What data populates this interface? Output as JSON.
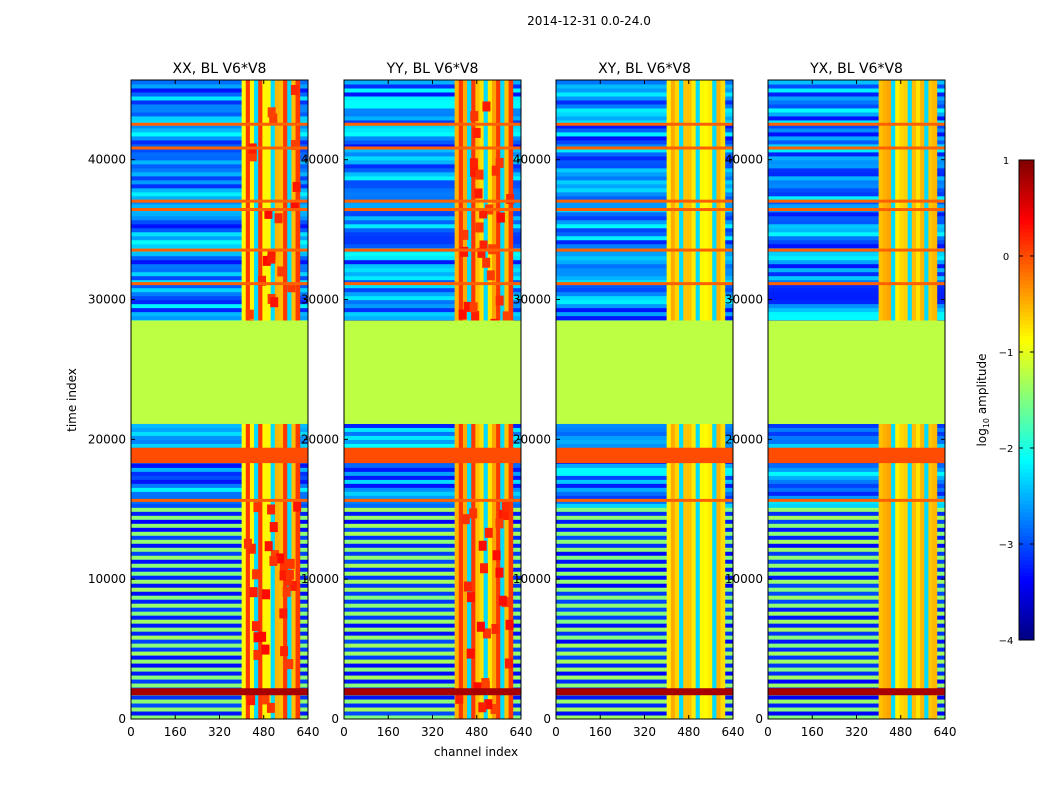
{
  "figure_title": "2014-12-31 0.0-24.0",
  "chart_data": {
    "type": "heatmap",
    "colormap": "jet",
    "xlabel": "channel index",
    "ylabel": "time index",
    "xlim": [
      0,
      640
    ],
    "ylim": [
      0,
      45700
    ],
    "xticks": [
      0,
      160,
      320,
      480,
      640
    ],
    "yticks": [
      0,
      10000,
      20000,
      30000,
      40000
    ],
    "xtick_labels": [
      "0",
      "160",
      "320",
      "480",
      "640"
    ],
    "ytick_labels": [
      "0",
      "10000",
      "20000",
      "30000",
      "40000"
    ],
    "colorbar": {
      "label_prefix": "log",
      "label_sub": "10",
      "label_suffix": " amplitude",
      "range": [
        -4,
        1
      ],
      "ticks": [
        1,
        0,
        -1,
        -2,
        -3,
        -4
      ],
      "tick_labels": [
        "1",
        "0",
        "−1",
        "−2",
        "−3",
        "−4"
      ]
    },
    "panels": [
      {
        "title": "XX, BL V6*V8"
      },
      {
        "title": "YY, BL V6*V8"
      },
      {
        "title": "XY, BL V6*V8"
      },
      {
        "title": "YX, BL V6*V8"
      }
    ],
    "features": {
      "flagged_block_time": [
        21100,
        28500
      ],
      "flagged_block_value": -1.2,
      "orange_band_time": [
        18300,
        19400
      ],
      "orange_band_value": 0.0,
      "dark_red_band_time": [
        1700,
        2200
      ],
      "dark_red_band_value": 0.8,
      "bright_channel_range": [
        400,
        610
      ],
      "background_value": -3.0,
      "line_times": [
        31100,
        33500,
        36400,
        37000,
        40800,
        42500,
        15600,
        2000
      ]
    }
  }
}
